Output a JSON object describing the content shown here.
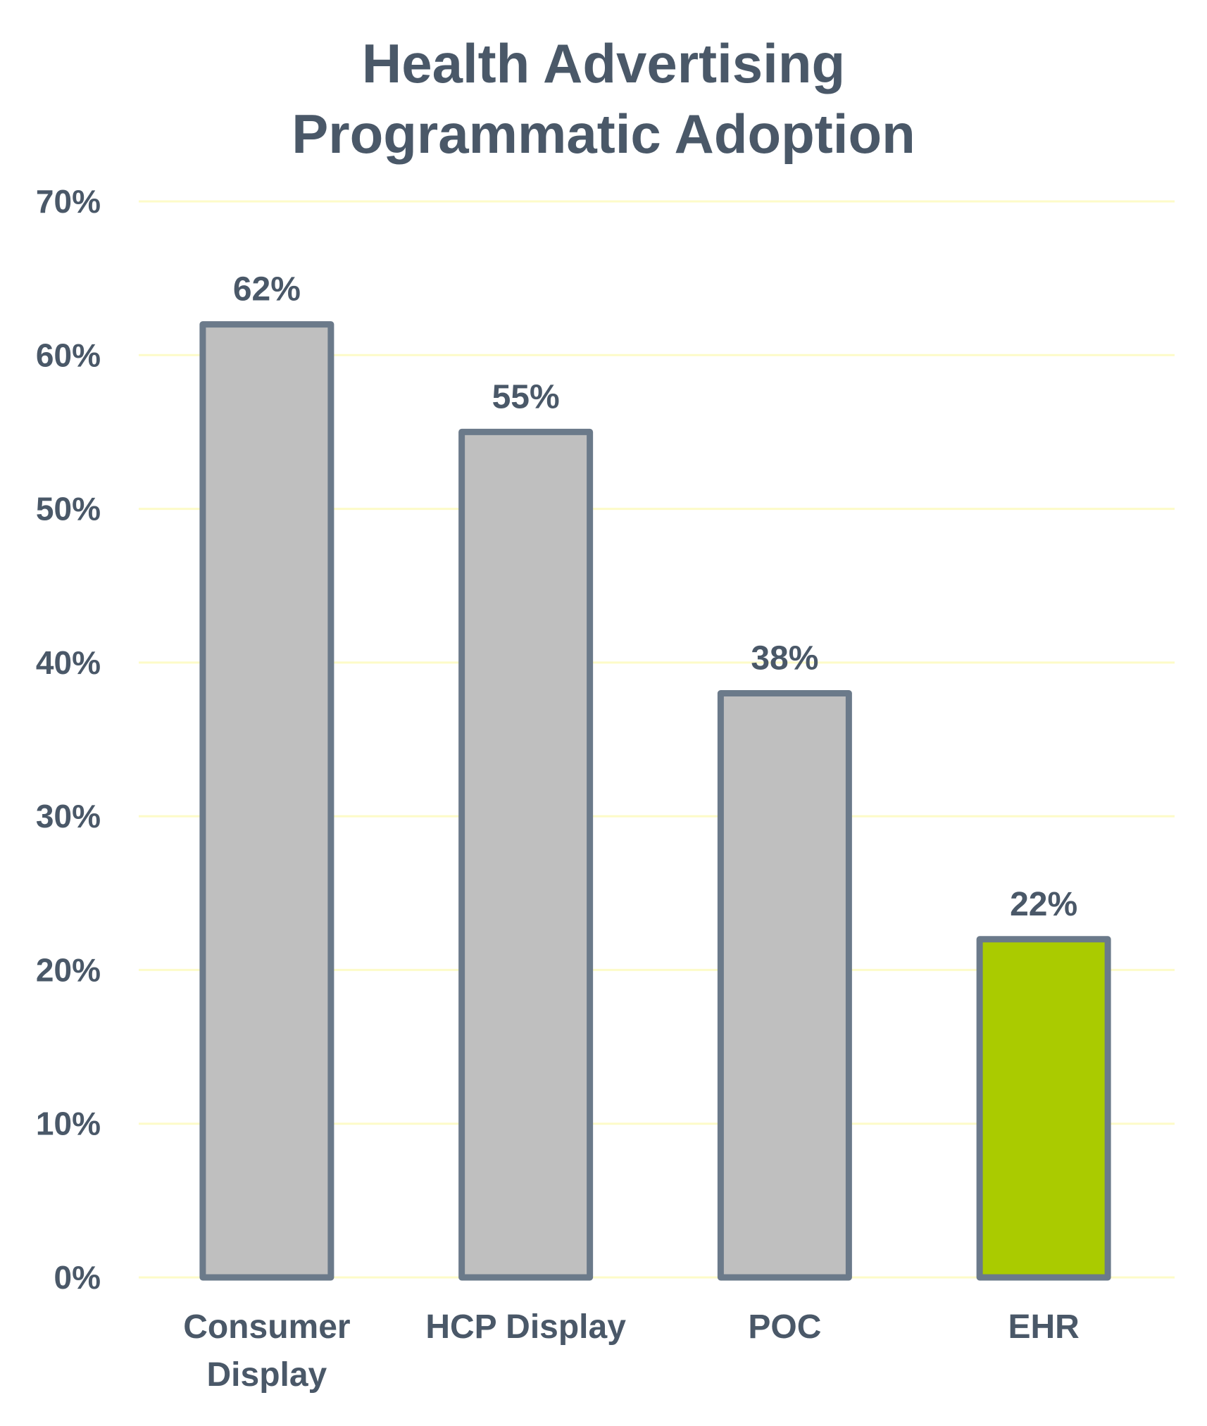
{
  "chart_data": {
    "type": "bar",
    "title_lines": [
      "Health Advertising",
      "Programmatic Adoption"
    ],
    "categories": [
      {
        "name": "Consumer Display",
        "lines": [
          "Consumer",
          "Display"
        ],
        "value": 62,
        "label": "62%",
        "fill": "#bfbfbf"
      },
      {
        "name": "HCP Display",
        "lines": [
          "HCP Display"
        ],
        "value": 55,
        "label": "55%",
        "fill": "#bfbfbf"
      },
      {
        "name": "POC",
        "lines": [
          "POC"
        ],
        "value": 38,
        "label": "38%",
        "fill": "#bfbfbf"
      },
      {
        "name": "EHR",
        "lines": [
          "EHR"
        ],
        "value": 22,
        "label": "22%",
        "fill": "#aacb00"
      }
    ],
    "values": [
      62,
      55,
      38,
      22
    ],
    "xlabel": "",
    "ylabel": "",
    "ylim": [
      0,
      70
    ],
    "yticks": [
      {
        "value": 0,
        "label": "0%"
      },
      {
        "value": 10,
        "label": "10%"
      },
      {
        "value": 20,
        "label": "20%"
      },
      {
        "value": 30,
        "label": "30%"
      },
      {
        "value": 40,
        "label": "40%"
      },
      {
        "value": 50,
        "label": "50%"
      },
      {
        "value": 60,
        "label": "60%"
      },
      {
        "value": 70,
        "label": "70%"
      }
    ],
    "grid": true,
    "legend": "none"
  },
  "colors": {
    "text": "#4a5868",
    "bar_outline": "#6b7a8a",
    "gridline": "#fdfbc8",
    "default_bar": "#bfbfbf",
    "highlight_bar": "#aacb00"
  }
}
